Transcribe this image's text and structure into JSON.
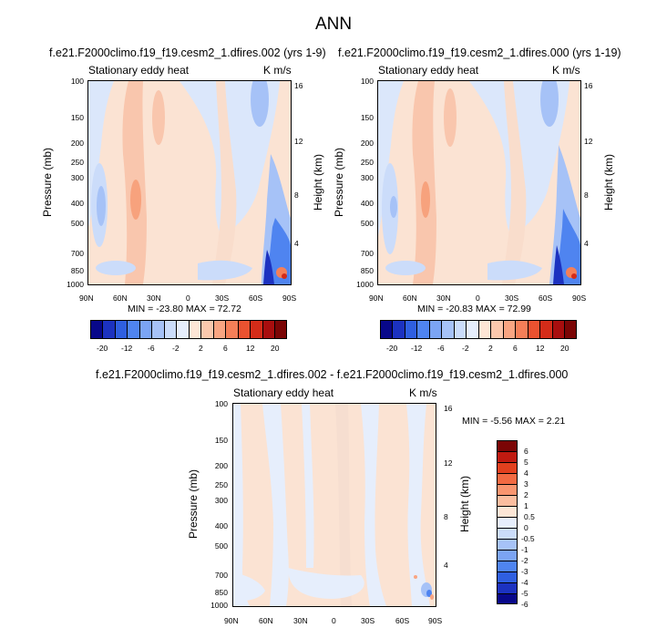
{
  "figure_title": "ANN",
  "chart_data": [
    {
      "type": "heatmap",
      "title": "f.e21.F2000climo.f19_f19.cesm2_1.dfires.002 (yrs 1-9)",
      "variable_label": "Stationary eddy heat",
      "units": "K m/s",
      "ylabel": "Pressure (mb)",
      "ylabel_right": "Height (km)",
      "x_ticks": [
        "90N",
        "60N",
        "30N",
        "0",
        "30S",
        "60S",
        "90S"
      ],
      "y_ticks": [
        "100",
        "150",
        "200",
        "250",
        "300",
        "400",
        "500",
        "700",
        "850",
        "1000"
      ],
      "y_ticks_right": [
        "16",
        "12",
        "8",
        "4"
      ],
      "min_label": "MIN = -23.80   MAX =  72.72",
      "min": -23.8,
      "max": 72.72,
      "colorbar_labels": [
        "-20",
        "-12",
        "-6",
        "-2",
        "2",
        "6",
        "12",
        "20"
      ]
    },
    {
      "type": "heatmap",
      "title": "f.e21.F2000climo.f19_f19.cesm2_1.dfires.000 (yrs 1-19)",
      "variable_label": "Stationary eddy heat",
      "units": "K m/s",
      "ylabel": "Pressure (mb)",
      "ylabel_right": "Height (km)",
      "x_ticks": [
        "90N",
        "60N",
        "30N",
        "0",
        "30S",
        "60S",
        "90S"
      ],
      "y_ticks": [
        "100",
        "150",
        "200",
        "250",
        "300",
        "400",
        "500",
        "700",
        "850",
        "1000"
      ],
      "y_ticks_right": [
        "16",
        "12",
        "8",
        "4"
      ],
      "min_label": "MIN = -20.83   MAX =  72.99",
      "min": -20.83,
      "max": 72.99,
      "colorbar_labels": [
        "-20",
        "-12",
        "-6",
        "-2",
        "2",
        "6",
        "12",
        "20"
      ]
    },
    {
      "type": "heatmap",
      "title": "f.e21.F2000climo.f19_f19.cesm2_1.dfires.002 - f.e21.F2000climo.f19_f19.cesm2_1.dfires.000",
      "variable_label": "Stationary eddy heat",
      "units": "K m/s",
      "ylabel": "Pressure (mb)",
      "ylabel_right": "Height (km)",
      "x_ticks": [
        "90N",
        "60N",
        "30N",
        "0",
        "30S",
        "60S",
        "90S"
      ],
      "y_ticks": [
        "100",
        "150",
        "200",
        "250",
        "300",
        "400",
        "500",
        "700",
        "850",
        "1000"
      ],
      "y_ticks_right": [
        "16",
        "12",
        "8",
        "4"
      ],
      "min_label": "MIN =  -5.56   MAX =   2.21",
      "min": -5.56,
      "max": 2.21,
      "colorbar_labels": [
        "6",
        "5",
        "4",
        "3",
        "2",
        "1",
        "0.5",
        "0",
        "-0.5",
        "-1",
        "-2",
        "-3",
        "-4",
        "-5",
        "-6"
      ]
    }
  ],
  "colors": {
    "main_cb": [
      "#08088a",
      "#1c32c0",
      "#2f5fe0",
      "#4f84f0",
      "#7ba4f4",
      "#a6c2f7",
      "#cbdcfa",
      "#e6eefc",
      "#fde6d6",
      "#fbc8ad",
      "#f9a582",
      "#f57f58",
      "#ea5230",
      "#d42c19",
      "#a80e0e",
      "#7b0505"
    ],
    "diff_cb": [
      "#7b0505",
      "#c01a10",
      "#e2401e",
      "#f26a42",
      "#f9956f",
      "#fbbd9f",
      "#fde6d6",
      "#e6eefc",
      "#cbdcfa",
      "#a6c2f7",
      "#7ba4f4",
      "#4f84f0",
      "#2f5fe0",
      "#1c32c0",
      "#08088a"
    ]
  }
}
